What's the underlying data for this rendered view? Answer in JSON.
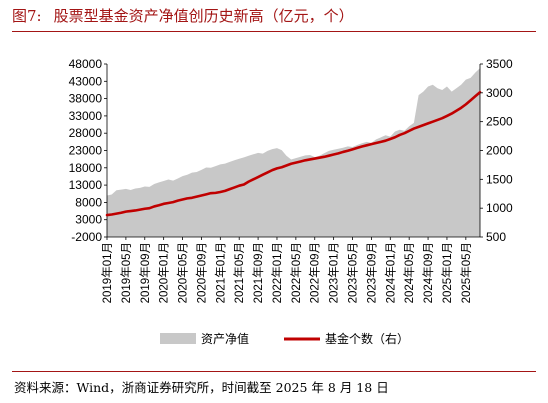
{
  "figure": {
    "label": "图7:",
    "title": "股票型基金资产净值创历史新高（亿元，个）"
  },
  "source": "资料来源：Wind，浙商证券研究所，时间截至 2025 年 8 月 18 日",
  "chart_data": {
    "type": "area+line",
    "x_ticks": [
      "2019年01月",
      "2019年05月",
      "2019年09月",
      "2020年01月",
      "2020年05月",
      "2020年09月",
      "2021年01月",
      "2021年05月",
      "2021年09月",
      "2022年01月",
      "2022年05月",
      "2022年09月",
      "2023年01月",
      "2023年05月",
      "2023年09月",
      "2024年01月",
      "2024年05月",
      "2024年09月",
      "2025年01月",
      "2025年05月"
    ],
    "y_left": {
      "min": -2000,
      "max": 48000,
      "ticks": [
        -2000,
        3000,
        8000,
        13000,
        18000,
        23000,
        28000,
        33000,
        38000,
        43000,
        48000
      ]
    },
    "y_right": {
      "min": 500,
      "max": 3500,
      "ticks": [
        500,
        1000,
        1500,
        2000,
        2500,
        3000,
        3500
      ]
    },
    "x_range": [
      0,
      79
    ],
    "series": [
      {
        "name": "资产净值",
        "type": "area",
        "axis": "left",
        "color": "#c8c8c8",
        "x": [
          0,
          1,
          2,
          3,
          4,
          5,
          6,
          7,
          8,
          9,
          10,
          11,
          12,
          13,
          14,
          15,
          16,
          17,
          18,
          19,
          20,
          21,
          22,
          23,
          24,
          25,
          26,
          27,
          28,
          29,
          30,
          31,
          32,
          33,
          34,
          35,
          36,
          37,
          38,
          39,
          40,
          41,
          42,
          43,
          44,
          45,
          46,
          47,
          48,
          49,
          50,
          51,
          52,
          53,
          54,
          55,
          56,
          57,
          58,
          59,
          60,
          61,
          62,
          63,
          64,
          65,
          66,
          67,
          68,
          69,
          70,
          71,
          72,
          73,
          74,
          75,
          76,
          77,
          78,
          79
        ],
        "values": [
          10000,
          10300,
          11500,
          11700,
          11900,
          11600,
          12000,
          12200,
          12600,
          12500,
          13300,
          13800,
          14200,
          14600,
          14300,
          14900,
          15600,
          16000,
          16600,
          16800,
          17400,
          18100,
          18000,
          18500,
          19000,
          19200,
          19700,
          20200,
          20600,
          21000,
          21500,
          21900,
          22300,
          22100,
          22900,
          23400,
          23700,
          23100,
          21500,
          20400,
          20800,
          21200,
          21600,
          21700,
          21100,
          21500,
          22200,
          22900,
          23200,
          23500,
          23800,
          24200,
          24000,
          24600,
          25100,
          25500,
          25200,
          26200,
          26800,
          27400,
          27000,
          28500,
          29000,
          28700,
          30000,
          31000,
          39000,
          40000,
          41500,
          42000,
          41000,
          40500,
          41500,
          40000,
          41000,
          42000,
          43500,
          44000,
          45500,
          46800
        ]
      },
      {
        "name": "基金个数（右）",
        "type": "line",
        "axis": "right",
        "color": "#c00000",
        "x": [
          0,
          1,
          2,
          3,
          4,
          5,
          6,
          7,
          8,
          9,
          10,
          11,
          12,
          13,
          14,
          15,
          16,
          17,
          18,
          19,
          20,
          21,
          22,
          23,
          24,
          25,
          26,
          27,
          28,
          29,
          30,
          31,
          32,
          33,
          34,
          35,
          36,
          37,
          38,
          39,
          40,
          41,
          42,
          43,
          44,
          45,
          46,
          47,
          48,
          49,
          50,
          51,
          52,
          53,
          54,
          55,
          56,
          57,
          58,
          59,
          60,
          61,
          62,
          63,
          64,
          65,
          66,
          67,
          68,
          69,
          70,
          71,
          72,
          73,
          74,
          75,
          76,
          77,
          78,
          79
        ],
        "values": [
          880,
          890,
          905,
          920,
          940,
          950,
          960,
          975,
          990,
          1000,
          1030,
          1050,
          1075,
          1090,
          1105,
          1130,
          1150,
          1170,
          1180,
          1200,
          1220,
          1240,
          1260,
          1265,
          1280,
          1300,
          1330,
          1360,
          1390,
          1410,
          1460,
          1500,
          1540,
          1580,
          1620,
          1660,
          1690,
          1710,
          1740,
          1770,
          1790,
          1810,
          1830,
          1845,
          1860,
          1875,
          1890,
          1910,
          1930,
          1950,
          1975,
          1995,
          2020,
          2045,
          2070,
          2090,
          2110,
          2130,
          2150,
          2170,
          2200,
          2230,
          2270,
          2300,
          2340,
          2380,
          2410,
          2440,
          2470,
          2500,
          2530,
          2560,
          2600,
          2640,
          2690,
          2740,
          2800,
          2870,
          2940,
          3010
        ]
      }
    ],
    "legend": {
      "position": "bottom",
      "entries": [
        "资产净值",
        "基金个数（右）"
      ]
    }
  }
}
